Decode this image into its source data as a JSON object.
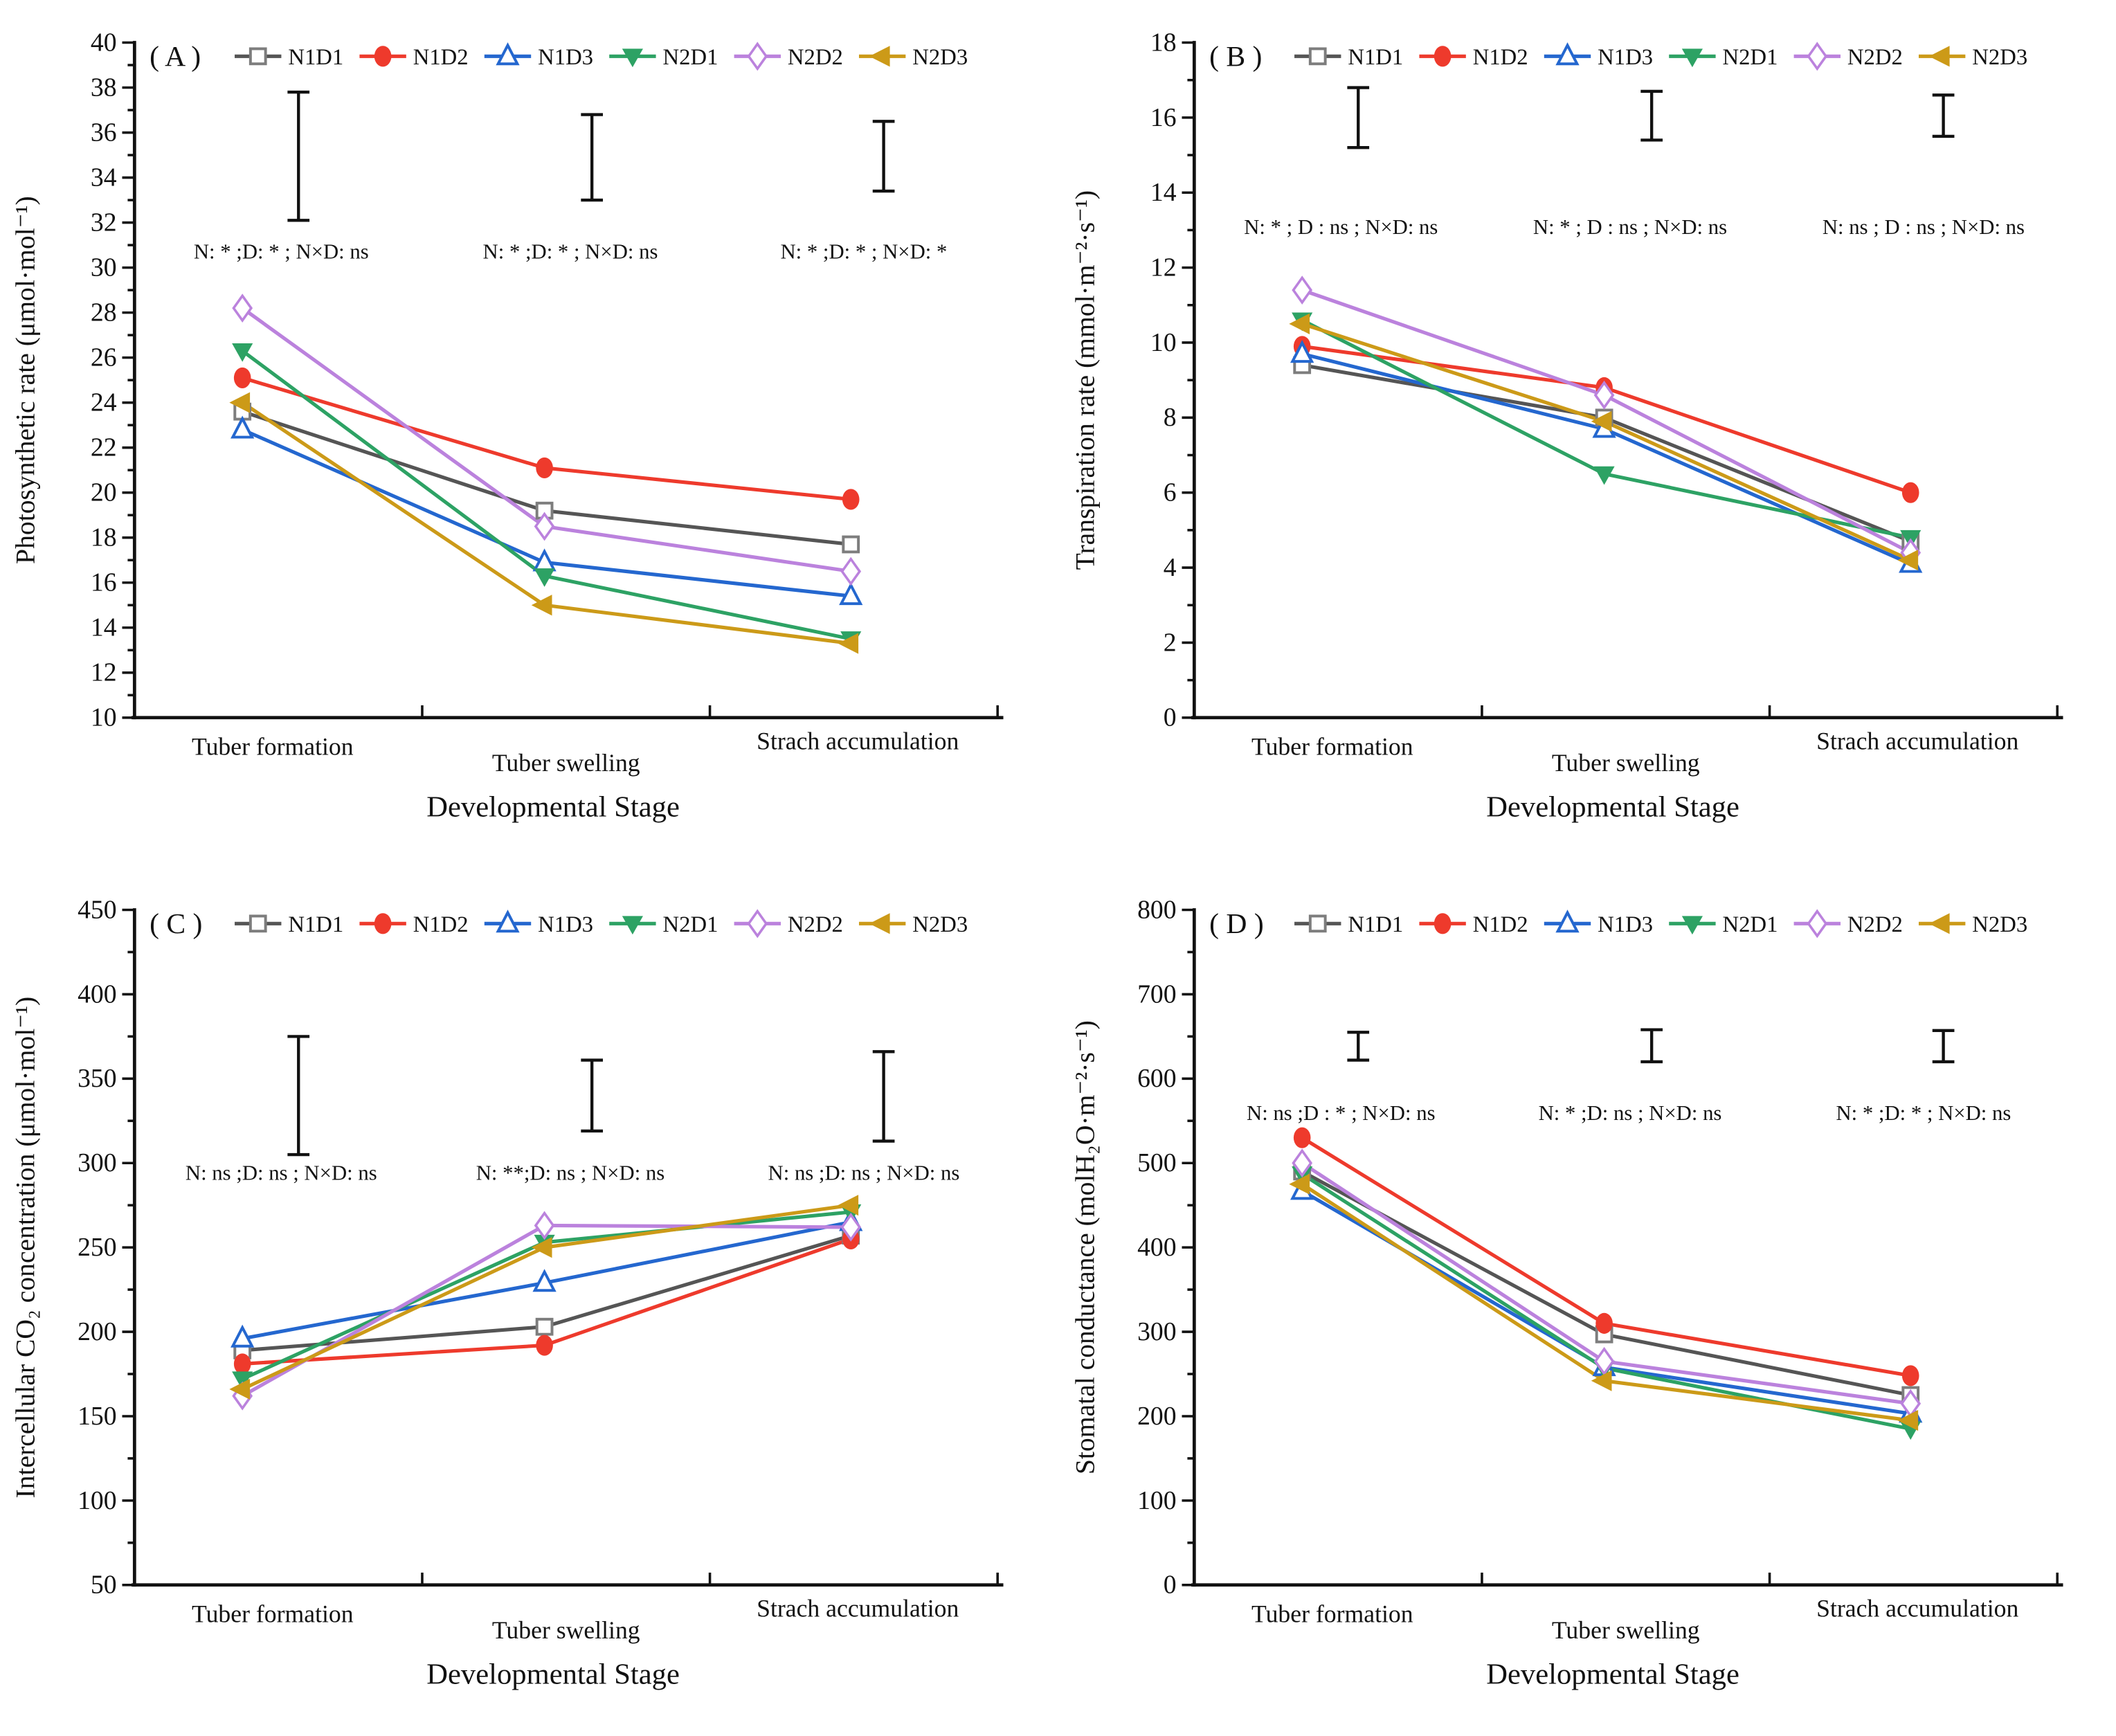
{
  "figure": {
    "xlabel": "Developmental  Stage",
    "categories": [
      "Tuber formation",
      "Tuber swelling",
      "Strach accumulation"
    ],
    "legend": [
      {
        "label": "N1D1",
        "color": "#555555",
        "marker": "open-square"
      },
      {
        "label": "N1D2",
        "color": "#ee3a2c",
        "marker": "filled-circle"
      },
      {
        "label": "N1D3",
        "color": "#2467cf",
        "marker": "open-triangle-up"
      },
      {
        "label": "N2D1",
        "color": "#2da264",
        "marker": "filled-triangle-down"
      },
      {
        "label": "N2D2",
        "color": "#bb82dd",
        "marker": "open-diamond"
      },
      {
        "label": "N2D3",
        "color": "#cc9a18",
        "marker": "filled-triangle-left"
      }
    ]
  },
  "chart_data": [
    {
      "id": "A",
      "panel_label": "( A )",
      "type": "line",
      "ylabel": "Photosynthetic rate (μmol·mol⁻¹)",
      "ylim": [
        10,
        40
      ],
      "ytick_major": 2,
      "ytick_minor": 1,
      "categories": [
        "Tuber formation",
        "Tuber swelling",
        "Strach accumulation"
      ],
      "series": [
        {
          "name": "N1D1",
          "values": [
            23.6,
            19.2,
            17.7
          ]
        },
        {
          "name": "N1D2",
          "values": [
            25.1,
            21.1,
            19.7
          ]
        },
        {
          "name": "N1D3",
          "values": [
            22.8,
            16.9,
            15.4
          ]
        },
        {
          "name": "N2D1",
          "values": [
            26.3,
            16.3,
            13.5
          ]
        },
        {
          "name": "N2D2",
          "values": [
            28.2,
            18.5,
            16.5
          ]
        },
        {
          "name": "N2D3",
          "values": [
            24.0,
            15.0,
            13.3
          ]
        }
      ],
      "error_bars": [
        [
          32.1,
          37.8
        ],
        [
          33.0,
          36.8
        ],
        [
          33.4,
          36.5
        ]
      ],
      "annotations": [
        "N: * ;D: * ; N×D: ns",
        "N: * ;D: * ; N×D: ns",
        "N: * ;D: * ; N×D: *"
      ],
      "annotation_y": 30.4
    },
    {
      "id": "B",
      "panel_label": "( B )",
      "type": "line",
      "ylabel": "Transpiration rate (mmol·m⁻²·s⁻¹)",
      "ylim": [
        0,
        18
      ],
      "ytick_major": 2,
      "ytick_minor": 1,
      "categories": [
        "Tuber formation",
        "Tuber swelling",
        "Strach accumulation"
      ],
      "series": [
        {
          "name": "N1D1",
          "values": [
            9.4,
            8.0,
            4.7
          ]
        },
        {
          "name": "N1D2",
          "values": [
            9.9,
            8.8,
            6.0
          ]
        },
        {
          "name": "N1D3",
          "values": [
            9.7,
            7.7,
            4.1
          ]
        },
        {
          "name": "N2D1",
          "values": [
            10.6,
            6.5,
            4.8
          ]
        },
        {
          "name": "N2D2",
          "values": [
            11.4,
            8.6,
            4.4
          ]
        },
        {
          "name": "N2D3",
          "values": [
            10.5,
            7.9,
            4.2
          ]
        }
      ],
      "error_bars": [
        [
          15.2,
          16.8
        ],
        [
          15.4,
          16.7
        ],
        [
          15.5,
          16.6
        ]
      ],
      "annotations": [
        "N: * ;  D : ns ; N×D: ns",
        "N: * ;  D : ns ; N×D: ns",
        "N: ns ;  D : ns ; N×D: ns"
      ],
      "annotation_y": 12.9
    },
    {
      "id": "C",
      "panel_label": "( C )",
      "type": "line",
      "ylabel": "Intercellular CO₂ concentration (μmol·mol⁻¹)",
      "ylim": [
        50,
        450
      ],
      "ytick_major": 50,
      "ytick_minor": 25,
      "categories": [
        "Tuber formation",
        "Tuber swelling",
        "Strach accumulation"
      ],
      "series": [
        {
          "name": "N1D1",
          "values": [
            189,
            203,
            257
          ]
        },
        {
          "name": "N1D2",
          "values": [
            181,
            192,
            255
          ]
        },
        {
          "name": "N1D3",
          "values": [
            196,
            229,
            265
          ]
        },
        {
          "name": "N2D1",
          "values": [
            172,
            253,
            271
          ]
        },
        {
          "name": "N2D2",
          "values": [
            162,
            263,
            262
          ]
        },
        {
          "name": "N2D3",
          "values": [
            166,
            250,
            275
          ]
        }
      ],
      "error_bars": [
        [
          305,
          375
        ],
        [
          319,
          361
        ],
        [
          313,
          366
        ]
      ],
      "annotations": [
        "N: ns ;D: ns ; N×D: ns",
        "N: **;D: ns ; N×D: ns",
        "N: ns ;D: ns ; N×D: ns"
      ],
      "annotation_y": 290
    },
    {
      "id": "D",
      "panel_label": "( D )",
      "type": "line",
      "ylabel": "Stomatal conductance (molH₂O·m⁻²·s⁻¹)",
      "ylim": [
        0,
        800
      ],
      "ytick_major": 100,
      "ytick_minor": 50,
      "categories": [
        "Tuber formation",
        "Tuber swelling",
        "Strach accumulation"
      ],
      "series": [
        {
          "name": "N1D1",
          "values": [
            490,
            297,
            225
          ]
        },
        {
          "name": "N1D2",
          "values": [
            530,
            310,
            248
          ]
        },
        {
          "name": "N1D3",
          "values": [
            467,
            258,
            203
          ]
        },
        {
          "name": "N2D1",
          "values": [
            487,
            257,
            185
          ]
        },
        {
          "name": "N2D2",
          "values": [
            500,
            265,
            215
          ]
        },
        {
          "name": "N2D3",
          "values": [
            475,
            242,
            195
          ]
        }
      ],
      "error_bars": [
        [
          622,
          655
        ],
        [
          620,
          658
        ],
        [
          620,
          657
        ]
      ],
      "annotations": [
        "N: ns ;D : * ; N×D: ns",
        "N: * ;D: ns ; N×D: ns",
        "N: * ;D: * ; N×D: ns"
      ],
      "annotation_y": 551
    }
  ]
}
